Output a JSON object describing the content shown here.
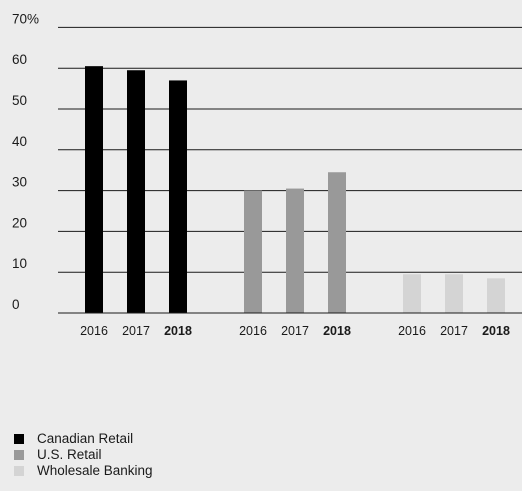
{
  "chart_data": {
    "type": "bar",
    "y_unit_suffix": "%",
    "yticks": [
      0,
      10,
      20,
      30,
      40,
      50,
      60,
      70
    ],
    "ylim": [
      0,
      70
    ],
    "grid": true,
    "legend_position": "bottom-left",
    "groups": [
      {
        "segment": "Canadian Retail",
        "color": "#000000",
        "bars": [
          {
            "year": "2016",
            "value": 60.5,
            "bold": false
          },
          {
            "year": "2017",
            "value": 59.5,
            "bold": false
          },
          {
            "year": "2018",
            "value": 57,
            "bold": true
          }
        ]
      },
      {
        "segment": "U.S. Retail",
        "color": "#999999",
        "bars": [
          {
            "year": "2016",
            "value": 30,
            "bold": false
          },
          {
            "year": "2017",
            "value": 30.5,
            "bold": false
          },
          {
            "year": "2018",
            "value": 34.5,
            "bold": true
          }
        ]
      },
      {
        "segment": "Wholesale Banking",
        "color": "#d4d4d4",
        "bars": [
          {
            "year": "2016",
            "value": 9.5,
            "bold": false
          },
          {
            "year": "2017",
            "value": 9.5,
            "bold": false
          },
          {
            "year": "2018",
            "value": 8.5,
            "bold": true
          }
        ]
      }
    ]
  }
}
